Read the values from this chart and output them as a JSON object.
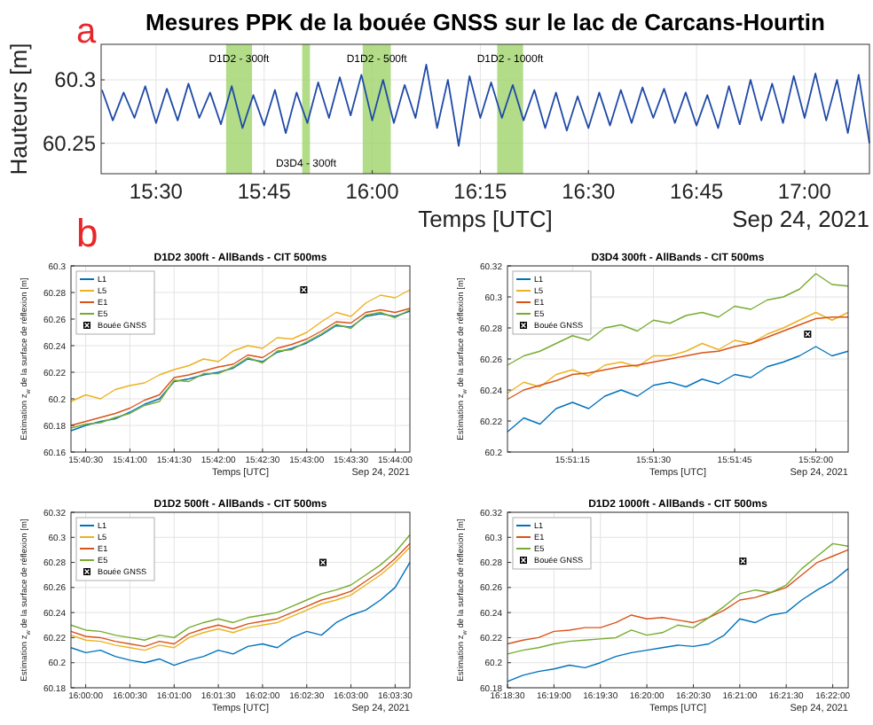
{
  "chart_data": [
    {
      "type": "line",
      "title": "Mesures PPK de la bouée GNSS sur le lac de Carcans-Hourtin",
      "xlabel": "Temps [UTC]",
      "ylabel": "Hauteurs [m]",
      "annotations": [
        "a",
        "Sep 24, 2021"
      ],
      "grid": true,
      "x": [
        15.375,
        15.4,
        15.425,
        15.45,
        15.475,
        15.5,
        15.525,
        15.55,
        15.575,
        15.6,
        15.625,
        15.65,
        15.675,
        15.7,
        15.725,
        15.75,
        15.775,
        15.8,
        15.825,
        15.85,
        15.875,
        15.9,
        15.925,
        15.95,
        15.975,
        16,
        16.025,
        16.05,
        16.075,
        16.1,
        16.125,
        16.15,
        16.175,
        16.2,
        16.225,
        16.25,
        16.275,
        16.3,
        16.325,
        16.35,
        16.375,
        16.4,
        16.425,
        16.45,
        16.475,
        16.5,
        16.525,
        16.55,
        16.575,
        16.6,
        16.625,
        16.65,
        16.675,
        16.7,
        16.725,
        16.75,
        16.775,
        16.8,
        16.825,
        16.85,
        16.875,
        16.9,
        16.925,
        16.95,
        16.975,
        17,
        17.025,
        17.05,
        17.075,
        17.1,
        17.125,
        17.15
      ],
      "xlim": [
        15.373,
        17.15
      ],
      "xticks": [
        {
          "value": 15.5,
          "label": "15:30"
        },
        {
          "value": 15.75,
          "label": "15:45"
        },
        {
          "value": 16,
          "label": "16:00"
        },
        {
          "value": 16.25,
          "label": "16:15"
        },
        {
          "value": 16.5,
          "label": "16:30"
        },
        {
          "value": 16.75,
          "label": "16:45"
        },
        {
          "value": 17,
          "label": "17:00"
        }
      ],
      "ylim": [
        60.226,
        60.328
      ],
      "yticks": [
        60.25,
        60.3
      ],
      "series": [
        {
          "color": "#1f4aa8",
          "values": [
            60.292,
            60.268,
            60.29,
            60.27,
            60.295,
            60.266,
            60.293,
            60.268,
            60.297,
            60.27,
            60.29,
            60.265,
            60.295,
            60.262,
            60.288,
            60.264,
            60.292,
            60.258,
            60.29,
            60.266,
            60.298,
            60.27,
            60.302,
            60.272,
            60.304,
            60.268,
            60.3,
            60.266,
            60.296,
            60.27,
            60.312,
            60.262,
            60.3,
            60.248,
            60.303,
            60.27,
            60.298,
            60.27,
            60.296,
            60.268,
            60.292,
            60.262,
            60.29,
            60.26,
            60.287,
            60.262,
            60.29,
            60.264,
            60.292,
            60.266,
            60.294,
            60.27,
            60.293,
            60.266,
            60.29,
            60.264,
            60.288,
            60.262,
            60.295,
            60.265,
            60.3,
            60.268,
            60.297,
            60.266,
            60.303,
            60.27,
            60.305,
            60.268,
            60.3,
            60.258,
            60.304,
            60.25
          ]
        }
      ],
      "bands": [
        {
          "axis": "x",
          "from": 15.662,
          "to": 15.722,
          "label": "D1D2 - 300ft",
          "color": "#9fd36a"
        },
        {
          "axis": "x",
          "from": 15.838,
          "to": 15.856,
          "label": "D3D4 - 300ft",
          "color": "#9fd36a"
        },
        {
          "axis": "x",
          "from": 15.978,
          "to": 16.043,
          "label": "D1D2 - 500ft",
          "color": "#9fd36a"
        },
        {
          "axis": "x",
          "from": 16.289,
          "to": 16.349,
          "label": "D1D2 - 1000ft",
          "color": "#9fd36a"
        }
      ]
    },
    {
      "type": "line",
      "title": "D1D2 300ft - AllBands - CIT 500ms",
      "xlabel": "Temps [UTC]",
      "ylabel": "Estimation z$_{w}$ de la surface de réflexion [m]",
      "annotations": [
        "b",
        "Sep 24, 2021"
      ],
      "grid": true,
      "legend": "top left",
      "x": [
        15.67222,
        15.675,
        15.67778,
        15.68056,
        15.68333,
        15.68611,
        15.68889,
        15.69167,
        15.69444,
        15.69722,
        15.7,
        15.70278,
        15.70556,
        15.70833,
        15.71111,
        15.71389,
        15.71667,
        15.71944,
        15.72222,
        15.725,
        15.72778,
        15.73056,
        15.73333,
        15.73611
      ],
      "xlim": [
        15.67222,
        15.73611
      ],
      "xticks": [
        {
          "value": 15.675,
          "label": "15:40:30"
        },
        {
          "value": 15.68333,
          "label": "15:41:00"
        },
        {
          "value": 15.69167,
          "label": "15:41:30"
        },
        {
          "value": 15.7,
          "label": "15:42:00"
        },
        {
          "value": 15.70833,
          "label": "15:42:30"
        },
        {
          "value": 15.71667,
          "label": "15:43:00"
        },
        {
          "value": 15.725,
          "label": "15:43:30"
        },
        {
          "value": 15.73333,
          "label": "15:44:00"
        }
      ],
      "ylim": [
        60.16,
        60.3
      ],
      "yticks": [
        60.16,
        60.18,
        60.2,
        60.22,
        60.24,
        60.26,
        60.28,
        60.3
      ],
      "series": [
        {
          "name": "L1",
          "color": "#0072bd",
          "values": [
            60.176,
            60.18,
            60.183,
            60.185,
            60.19,
            60.196,
            60.2,
            60.213,
            60.215,
            60.218,
            60.22,
            60.223,
            60.23,
            60.228,
            60.235,
            60.238,
            60.242,
            60.248,
            60.255,
            60.254,
            60.262,
            60.264,
            60.262,
            60.266
          ]
        },
        {
          "name": "L5",
          "color": "#edb120",
          "values": [
            60.198,
            60.203,
            60.2,
            60.207,
            60.21,
            60.212,
            60.218,
            60.222,
            60.225,
            60.23,
            60.228,
            60.236,
            60.24,
            60.238,
            60.246,
            60.245,
            60.25,
            60.258,
            60.265,
            60.262,
            60.272,
            60.278,
            60.276,
            60.282
          ]
        },
        {
          "name": "E1",
          "color": "#d95319",
          "values": [
            60.18,
            60.183,
            60.186,
            60.189,
            60.193,
            60.199,
            60.203,
            60.216,
            60.218,
            60.221,
            60.224,
            60.226,
            60.233,
            60.231,
            60.238,
            60.241,
            60.245,
            60.251,
            60.258,
            60.257,
            60.265,
            60.267,
            60.265,
            60.268
          ]
        },
        {
          "name": "E5",
          "color": "#77ac30",
          "values": [
            60.178,
            60.181,
            60.182,
            60.186,
            60.189,
            60.195,
            60.198,
            60.214,
            60.213,
            60.219,
            60.219,
            60.224,
            60.231,
            60.227,
            60.236,
            60.237,
            60.243,
            60.249,
            60.256,
            60.253,
            60.263,
            60.265,
            60.261,
            60.267
          ]
        },
        {
          "name": "Bouée GNSS",
          "type": "scatter",
          "marker": "square",
          "color": "#000000",
          "x": [
            15.71611
          ],
          "values": [
            60.282
          ]
        }
      ]
    },
    {
      "type": "line",
      "title": "D3D4 300ft - AllBands - CIT 500ms",
      "xlabel": "Temps [UTC]",
      "ylabel": "Estimation z$_{w}$ de la surface de réflexion [m]",
      "annotations": [
        "Sep 24, 2021"
      ],
      "grid": true,
      "legend": "top left",
      "x": [
        15.85083,
        15.85167,
        15.8525,
        15.85333,
        15.85417,
        15.855,
        15.85583,
        15.85667,
        15.8575,
        15.85833,
        15.85917,
        15.86,
        15.86083,
        15.86167,
        15.8625,
        15.86333,
        15.86417,
        15.865,
        15.86583,
        15.86667,
        15.8675,
        15.86833
      ],
      "xlim": [
        15.85083,
        15.86833
      ],
      "xticks": [
        {
          "value": 15.85417,
          "label": "15:51:15"
        },
        {
          "value": 15.85833,
          "label": "15:51:30"
        },
        {
          "value": 15.8625,
          "label": "15:51:45"
        },
        {
          "value": 15.86667,
          "label": "15:52:00"
        }
      ],
      "ylim": [
        60.2,
        60.32
      ],
      "yticks": [
        60.2,
        60.22,
        60.24,
        60.26,
        60.28,
        60.3,
        60.32
      ],
      "series": [
        {
          "name": "L1",
          "color": "#0072bd",
          "values": [
            60.213,
            60.222,
            60.218,
            60.228,
            60.232,
            60.228,
            60.236,
            60.24,
            60.236,
            60.243,
            60.245,
            60.242,
            60.247,
            60.244,
            60.25,
            60.248,
            60.255,
            60.258,
            60.262,
            60.268,
            60.262,
            60.265
          ]
        },
        {
          "name": "L5",
          "color": "#edb120",
          "values": [
            60.238,
            60.245,
            60.242,
            60.25,
            60.253,
            60.249,
            60.256,
            60.258,
            60.255,
            60.262,
            60.262,
            60.265,
            60.27,
            60.266,
            60.272,
            60.27,
            60.276,
            60.28,
            60.285,
            60.29,
            60.285,
            60.29
          ]
        },
        {
          "name": "E1",
          "color": "#d95319",
          "values": [
            60.234,
            60.24,
            60.243,
            60.246,
            60.25,
            60.251,
            60.253,
            60.255,
            60.256,
            60.258,
            60.26,
            60.262,
            60.264,
            60.265,
            60.268,
            60.27,
            60.274,
            60.278,
            60.282,
            60.286,
            60.287,
            60.287
          ]
        },
        {
          "name": "E5",
          "color": "#77ac30",
          "values": [
            60.256,
            60.262,
            60.265,
            60.27,
            60.275,
            60.272,
            60.28,
            60.282,
            60.278,
            60.285,
            60.283,
            60.288,
            60.29,
            60.287,
            60.294,
            60.292,
            60.298,
            60.3,
            60.305,
            60.315,
            60.308,
            60.307
          ]
        },
        {
          "name": "Bouée GNSS",
          "type": "scatter",
          "marker": "square",
          "color": "#000000",
          "x": [
            15.86625
          ],
          "values": [
            60.276
          ]
        }
      ]
    },
    {
      "type": "line",
      "title": "D1D2 500ft - AllBands - CIT 500ms",
      "xlabel": "Temps [UTC]",
      "ylabel": "Estimation z$_{w}$ de la surface de réflexion [m]",
      "annotations": [
        "Sep 24, 2021"
      ],
      "grid": true,
      "legend": "top left",
      "x": [
        15.99722,
        16,
        16.00278,
        16.00556,
        16.00833,
        16.01111,
        16.01389,
        16.01667,
        16.01944,
        16.02222,
        16.025,
        16.02778,
        16.03056,
        16.03333,
        16.03611,
        16.03889,
        16.04167,
        16.04444,
        16.04722,
        16.05,
        16.05278,
        16.05556,
        16.05833,
        16.06111
      ],
      "xlim": [
        15.99722,
        16.06111
      ],
      "xticks": [
        {
          "value": 16,
          "label": "16:00:00"
        },
        {
          "value": 16.00833,
          "label": "16:00:30"
        },
        {
          "value": 16.01667,
          "label": "16:01:00"
        },
        {
          "value": 16.025,
          "label": "16:01:30"
        },
        {
          "value": 16.03333,
          "label": "16:02:00"
        },
        {
          "value": 16.04167,
          "label": "16:02:30"
        },
        {
          "value": 16.05,
          "label": "16:03:00"
        },
        {
          "value": 16.05833,
          "label": "16:03:30"
        }
      ],
      "ylim": [
        60.18,
        60.32
      ],
      "yticks": [
        60.18,
        60.2,
        60.22,
        60.24,
        60.26,
        60.28,
        60.3,
        60.32
      ],
      "series": [
        {
          "name": "L1",
          "color": "#0072bd",
          "values": [
            60.212,
            60.208,
            60.21,
            60.205,
            60.202,
            60.2,
            60.203,
            60.198,
            60.202,
            60.205,
            60.21,
            60.207,
            60.213,
            60.215,
            60.212,
            60.22,
            60.225,
            60.222,
            60.232,
            60.238,
            60.242,
            60.25,
            60.26,
            60.28
          ]
        },
        {
          "name": "L5",
          "color": "#edb120",
          "values": [
            60.222,
            60.218,
            60.217,
            60.214,
            60.212,
            60.21,
            60.214,
            60.212,
            60.22,
            60.224,
            60.227,
            60.224,
            60.228,
            60.23,
            60.232,
            60.237,
            60.242,
            60.247,
            60.25,
            60.254,
            60.262,
            60.27,
            60.28,
            60.292
          ]
        },
        {
          "name": "E1",
          "color": "#d95319",
          "values": [
            60.225,
            60.221,
            60.22,
            60.217,
            60.215,
            60.213,
            60.217,
            60.215,
            60.223,
            60.227,
            60.23,
            60.227,
            60.231,
            60.233,
            60.235,
            60.24,
            60.245,
            60.25,
            60.253,
            60.257,
            60.265,
            60.273,
            60.283,
            60.295
          ]
        },
        {
          "name": "E5",
          "color": "#77ac30",
          "values": [
            60.23,
            60.226,
            60.225,
            60.222,
            60.22,
            60.218,
            60.222,
            60.22,
            60.228,
            60.232,
            60.235,
            60.232,
            60.236,
            60.238,
            60.24,
            60.245,
            60.25,
            60.255,
            60.258,
            60.262,
            60.27,
            60.278,
            60.288,
            60.302
          ]
        },
        {
          "name": "Bouée GNSS",
          "type": "scatter",
          "marker": "square",
          "color": "#000000",
          "x": [
            16.04472
          ],
          "values": [
            60.28
          ]
        }
      ]
    },
    {
      "type": "line",
      "title": "D1D2 1000ft - AllBands - CIT 500ms",
      "xlabel": "Temps [UTC]",
      "ylabel": "Estimation z$_{w}$ de la surface de réflexion [m]",
      "annotations": [
        "Sep 24, 2021"
      ],
      "grid": true,
      "legend": "top left",
      "x": [
        16.30833,
        16.31111,
        16.31389,
        16.31667,
        16.31944,
        16.32222,
        16.325,
        16.32778,
        16.33056,
        16.33333,
        16.33611,
        16.33889,
        16.34167,
        16.34444,
        16.34722,
        16.35,
        16.35278,
        16.35556,
        16.35833,
        16.36111,
        16.36389,
        16.36667,
        16.36944
      ],
      "xlim": [
        16.30833,
        16.36944
      ],
      "xticks": [
        {
          "value": 16.30833,
          "label": "16:18:30"
        },
        {
          "value": 16.31667,
          "label": "16:19:00"
        },
        {
          "value": 16.325,
          "label": "16:19:30"
        },
        {
          "value": 16.33333,
          "label": "16:20:00"
        },
        {
          "value": 16.34167,
          "label": "16:20:30"
        },
        {
          "value": 16.35,
          "label": "16:21:00"
        },
        {
          "value": 16.35833,
          "label": "16:21:30"
        },
        {
          "value": 16.36667,
          "label": "16:22:00"
        }
      ],
      "ylim": [
        60.18,
        60.32
      ],
      "yticks": [
        60.18,
        60.2,
        60.22,
        60.24,
        60.26,
        60.28,
        60.3,
        60.32
      ],
      "series": [
        {
          "name": "L1",
          "color": "#0072bd",
          "values": [
            60.185,
            60.19,
            60.193,
            60.195,
            60.198,
            60.196,
            60.2,
            60.205,
            60.208,
            60.21,
            60.212,
            60.214,
            60.213,
            60.215,
            60.222,
            60.235,
            60.232,
            60.238,
            60.24,
            60.25,
            60.258,
            60.265,
            60.275
          ]
        },
        {
          "name": "E1",
          "color": "#d95319",
          "values": [
            60.215,
            60.218,
            60.22,
            60.225,
            60.226,
            60.228,
            60.228,
            60.232,
            60.238,
            60.235,
            60.236,
            60.234,
            60.232,
            60.236,
            60.242,
            60.25,
            60.252,
            60.256,
            60.26,
            60.27,
            60.28,
            60.285,
            60.29
          ]
        },
        {
          "name": "E5",
          "color": "#77ac30",
          "values": [
            60.207,
            60.21,
            60.212,
            60.215,
            60.217,
            60.218,
            60.219,
            60.22,
            60.226,
            60.222,
            60.224,
            60.23,
            60.228,
            60.236,
            60.245,
            60.255,
            60.258,
            60.256,
            60.262,
            60.275,
            60.285,
            60.295,
            60.293
          ]
        },
        {
          "name": "Bouée GNSS",
          "type": "scatter",
          "marker": "square",
          "color": "#000000",
          "x": [
            16.35056
          ],
          "values": [
            60.281
          ]
        }
      ]
    }
  ]
}
